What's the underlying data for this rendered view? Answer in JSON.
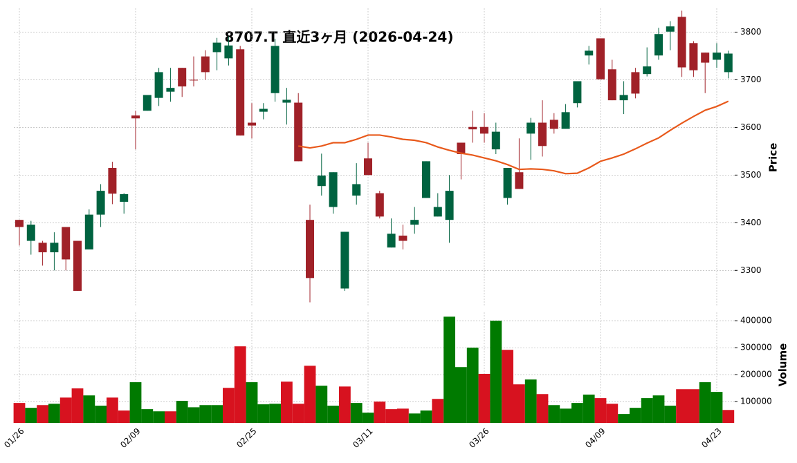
{
  "chart_data": {
    "type": "candlestick",
    "title": "8707.T 直近3ヶ月 (2026-04-24)",
    "y_label": "Price",
    "volume_label": "Volume",
    "categories": [
      "01/26",
      null,
      null,
      null,
      null,
      null,
      null,
      null,
      null,
      null,
      "02/09",
      null,
      null,
      null,
      null,
      null,
      null,
      null,
      null,
      null,
      "02/25",
      null,
      null,
      null,
      null,
      null,
      null,
      null,
      null,
      null,
      "03/11",
      null,
      null,
      null,
      null,
      null,
      null,
      null,
      null,
      null,
      "03/26",
      null,
      null,
      null,
      null,
      null,
      null,
      null,
      null,
      null,
      "04/09",
      null,
      null,
      null,
      null,
      null,
      null,
      null,
      null,
      null,
      "04/23",
      null
    ],
    "open": [
      3406,
      3362,
      3358,
      3338,
      3391,
      3362,
      3344,
      3417,
      3515,
      3444,
      3625,
      3635,
      3662,
      3675,
      3725,
      3700,
      3749,
      3758,
      3745,
      3764,
      3610,
      3633,
      3672,
      3652,
      3652,
      3406,
      3477,
      3433,
      3262,
      3457,
      3535,
      3462,
      3348,
      3373,
      3396,
      3452,
      3413,
      3406,
      3568,
      3601,
      3601,
      3554,
      3452,
      3506,
      3587,
      3610,
      3616,
      3597,
      3651,
      3751,
      3787,
      3722,
      3657,
      3716,
      3712,
      3751,
      3801,
      3832,
      3777,
      3757,
      3742,
      3716
    ],
    "high": [
      3406,
      3404,
      3362,
      3380,
      3391,
      3362,
      3428,
      3481,
      3528,
      3462,
      3635,
      3668,
      3725,
      3725,
      3725,
      3749,
      3762,
      3788,
      3791,
      3771,
      3651,
      3651,
      3786,
      3683,
      3672,
      3438,
      3545,
      3506,
      3381,
      3525,
      3568,
      3467,
      3409,
      3396,
      3433,
      3529,
      3462,
      3500,
      3568,
      3635,
      3630,
      3610,
      3515,
      3577,
      3620,
      3657,
      3630,
      3649,
      3697,
      3771,
      3787,
      3742,
      3697,
      3725,
      3768,
      3809,
      3823,
      3845,
      3781,
      3757,
      3777,
      3761
    ],
    "low": [
      3352,
      3333,
      3310,
      3300,
      3300,
      3257,
      3344,
      3391,
      3439,
      3419,
      3554,
      3635,
      3645,
      3654,
      3664,
      3686,
      3700,
      3720,
      3730,
      3583,
      3577,
      3617,
      3654,
      3606,
      3529,
      3233,
      3457,
      3419,
      3257,
      3438,
      3500,
      3409,
      3348,
      3344,
      3377,
      3452,
      3413,
      3358,
      3491,
      3568,
      3568,
      3544,
      3438,
      3471,
      3532,
      3539,
      3587,
      3597,
      3642,
      3732,
      3701,
      3657,
      3628,
      3661,
      3707,
      3742,
      3762,
      3706,
      3706,
      3672,
      3725,
      3703
    ],
    "close": [
      3391,
      3396,
      3338,
      3358,
      3323,
      3257,
      3417,
      3467,
      3461,
      3460,
      3619,
      3668,
      3716,
      3683,
      3686,
      3699,
      3716,
      3778,
      3772,
      3583,
      3604,
      3639,
      3771,
      3658,
      3529,
      3284,
      3499,
      3506,
      3381,
      3481,
      3500,
      3413,
      3377,
      3362,
      3406,
      3529,
      3433,
      3467,
      3544,
      3596,
      3587,
      3591,
      3515,
      3471,
      3610,
      3561,
      3597,
      3632,
      3697,
      3761,
      3701,
      3657,
      3668,
      3671,
      3728,
      3796,
      3812,
      3726,
      3720,
      3736,
      3757,
      3755
    ],
    "ma": [
      null,
      null,
      null,
      null,
      null,
      null,
      null,
      null,
      null,
      null,
      null,
      null,
      null,
      null,
      null,
      null,
      null,
      null,
      null,
      null,
      null,
      null,
      null,
      null,
      3561,
      3557,
      3561,
      3568,
      3568,
      3575,
      3584,
      3584,
      3580,
      3575,
      3573,
      3568,
      3559,
      3552,
      3546,
      3542,
      3536,
      3530,
      3522,
      3512,
      3513,
      3512,
      3509,
      3503,
      3504,
      3515,
      3529,
      3536,
      3544,
      3555,
      3567,
      3578,
      3594,
      3609,
      3623,
      3636,
      3644,
      3655
    ],
    "volume": [
      95000,
      77000,
      87000,
      92000,
      115000,
      149000,
      123000,
      85000,
      115000,
      67000,
      172000,
      72000,
      64000,
      64000,
      103000,
      79000,
      87000,
      87000,
      151000,
      305000,
      172000,
      90000,
      92000,
      174000,
      92000,
      233000,
      159000,
      85000,
      156000,
      95000,
      59000,
      100000,
      72000,
      74000,
      56000,
      67000,
      110000,
      415000,
      228000,
      300000,
      203000,
      400000,
      292000,
      164000,
      182000,
      128000,
      87000,
      74000,
      95000,
      126000,
      113000,
      92000,
      54000,
      77000,
      113000,
      123000,
      85000,
      146000,
      146000,
      172000,
      136000,
      69000
    ],
    "up_color": "#006340",
    "down_color": "#a02128",
    "volume_up_color": "#007a00",
    "volume_down_color": "#d7121f",
    "ma_color": "#e8591b",
    "ylim": [
      3225,
      3850
    ],
    "yticks": [
      3300,
      3400,
      3500,
      3600,
      3700,
      3800
    ],
    "volume_ylim": [
      21000,
      431000
    ],
    "volume_yticks": [
      100000,
      200000,
      300000,
      400000
    ],
    "grid": true
  }
}
